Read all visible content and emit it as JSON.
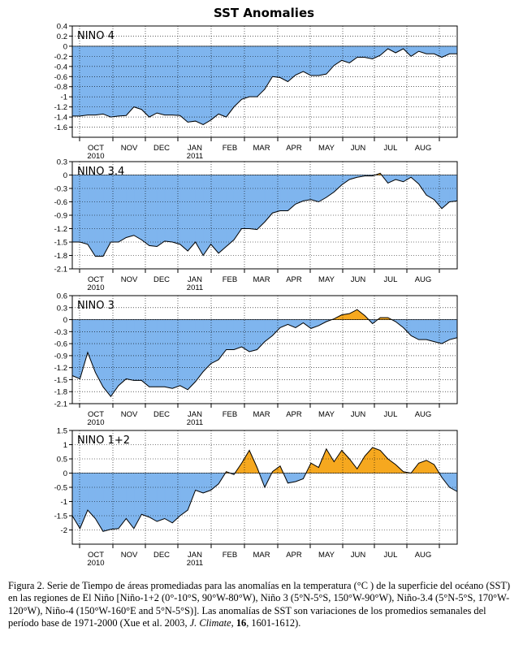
{
  "figure": {
    "title": "SST Anomalies"
  },
  "chart_data": [
    {
      "type": "area",
      "panel": "NINO 4",
      "x_ticks": [
        "OCT",
        "NOV",
        "DEC",
        "JAN",
        "FEB",
        "MAR",
        "APR",
        "MAY",
        "JUN",
        "JUL",
        "AUG"
      ],
      "x_year_labels": [
        {
          "under": "OCT",
          "text": "2010"
        },
        {
          "under": "JAN",
          "text": "2011"
        }
      ],
      "ylim": [
        -1.8,
        0.4
      ],
      "yticks": [
        -1.6,
        -1.4,
        -1.2,
        -1,
        -0.8,
        -0.6,
        -0.4,
        -0.2,
        0,
        0.2,
        0.4
      ],
      "y_tick_labels": [
        "-1.6",
        "-1.4",
        "-1.2",
        "-1",
        "-0.8",
        "-0.6",
        "-0.4",
        "-0.2",
        "0",
        "0.2",
        "0.4"
      ],
      "values": [
        -1.38,
        -1.38,
        -1.36,
        -1.36,
        -1.34,
        -1.4,
        -1.38,
        -1.37,
        -1.2,
        -1.25,
        -1.4,
        -1.32,
        -1.36,
        -1.36,
        -1.37,
        -1.5,
        -1.48,
        -1.55,
        -1.46,
        -1.34,
        -1.4,
        -1.2,
        -1.05,
        -1.0,
        -1.0,
        -0.85,
        -0.6,
        -0.62,
        -0.7,
        -0.57,
        -0.5,
        -0.58,
        -0.58,
        -0.55,
        -0.38,
        -0.28,
        -0.33,
        -0.22,
        -0.22,
        -0.25,
        -0.18,
        -0.05,
        -0.13,
        -0.05,
        -0.2,
        -0.1,
        -0.15,
        -0.15,
        -0.22,
        -0.15,
        -0.15
      ]
    },
    {
      "type": "area",
      "panel": "NINO 3.4",
      "x_ticks": [
        "OCT",
        "NOV",
        "DEC",
        "JAN",
        "FEB",
        "MAR",
        "APR",
        "MAY",
        "JUN",
        "JUL",
        "AUG"
      ],
      "x_year_labels": [
        {
          "under": "OCT",
          "text": "2010"
        },
        {
          "under": "JAN",
          "text": "2011"
        }
      ],
      "ylim": [
        -2.1,
        0.3
      ],
      "yticks": [
        -2.1,
        -1.8,
        -1.5,
        -1.2,
        -0.9,
        -0.6,
        -0.3,
        0,
        0.3
      ],
      "y_tick_labels": [
        "-2.1",
        "-1.8",
        "-1.5",
        "-1.2",
        "-0.9",
        "-0.6",
        "-0.3",
        "0",
        "0.3"
      ],
      "values": [
        -1.5,
        -1.5,
        -1.55,
        -1.82,
        -1.82,
        -1.5,
        -1.5,
        -1.4,
        -1.35,
        -1.45,
        -1.58,
        -1.6,
        -1.48,
        -1.5,
        -1.55,
        -1.7,
        -1.5,
        -1.8,
        -1.55,
        -1.75,
        -1.6,
        -1.45,
        -1.2,
        -1.2,
        -1.22,
        -1.05,
        -0.85,
        -0.8,
        -0.8,
        -0.65,
        -0.58,
        -0.55,
        -0.6,
        -0.5,
        -0.38,
        -0.22,
        -0.1,
        -0.05,
        -0.02,
        -0.02,
        0.04,
        -0.18,
        -0.1,
        -0.15,
        -0.05,
        -0.2,
        -0.45,
        -0.55,
        -0.75,
        -0.6,
        -0.58
      ]
    },
    {
      "type": "area",
      "panel": "NINO 3",
      "x_ticks": [
        "OCT",
        "NOV",
        "DEC",
        "JAN",
        "FEB",
        "MAR",
        "APR",
        "MAY",
        "JUN",
        "JUL",
        "AUG"
      ],
      "x_year_labels": [
        {
          "under": "OCT",
          "text": "2010"
        },
        {
          "under": "JAN",
          "text": "2011"
        }
      ],
      "ylim": [
        -2.1,
        0.6
      ],
      "yticks": [
        -2.1,
        -1.8,
        -1.5,
        -1.2,
        -0.9,
        -0.6,
        -0.3,
        0,
        0.3,
        0.6
      ],
      "y_tick_labels": [
        "-2.1",
        "-1.8",
        "-1.5",
        "-1.2",
        "-0.9",
        "-0.6",
        "-0.3",
        "0",
        "0.3",
        "0.6"
      ],
      "values": [
        -1.4,
        -1.48,
        -0.82,
        -1.32,
        -1.68,
        -1.92,
        -1.65,
        -1.48,
        -1.52,
        -1.52,
        -1.68,
        -1.68,
        -1.68,
        -1.72,
        -1.65,
        -1.75,
        -1.55,
        -1.3,
        -1.1,
        -1.0,
        -0.75,
        -0.75,
        -0.68,
        -0.8,
        -0.75,
        -0.55,
        -0.4,
        -0.2,
        -0.12,
        -0.2,
        -0.08,
        -0.22,
        -0.15,
        -0.05,
        0.02,
        0.12,
        0.15,
        0.25,
        0.1,
        -0.1,
        0.05,
        0.05,
        -0.05,
        -0.2,
        -0.4,
        -0.5,
        -0.5,
        -0.55,
        -0.6,
        -0.5,
        -0.45
      ]
    },
    {
      "type": "area",
      "panel": "NINO 1+2",
      "x_ticks": [
        "OCT",
        "NOV",
        "DEC",
        "JAN",
        "FEB",
        "MAR",
        "APR",
        "MAY",
        "JUN",
        "JUL",
        "AUG"
      ],
      "x_year_labels": [
        {
          "under": "OCT",
          "text": "2010"
        },
        {
          "under": "JAN",
          "text": "2011"
        }
      ],
      "ylim": [
        -2.5,
        1.5
      ],
      "yticks": [
        -2,
        -1.5,
        -1,
        -0.5,
        0,
        0.5,
        1,
        1.5
      ],
      "y_tick_labels": [
        "-2",
        "-1.5",
        "-1",
        "-0.5",
        "0",
        "0.5",
        "1",
        "1.5"
      ],
      "values": [
        -1.5,
        -1.95,
        -1.3,
        -1.6,
        -2.05,
        -1.98,
        -1.95,
        -1.6,
        -1.95,
        -1.45,
        -1.55,
        -1.7,
        -1.6,
        -1.75,
        -1.5,
        -1.3,
        -0.6,
        -0.7,
        -0.6,
        -0.38,
        0.05,
        -0.05,
        0.35,
        0.8,
        0.2,
        -0.5,
        0.05,
        0.25,
        -0.35,
        -0.3,
        -0.2,
        0.35,
        0.2,
        0.85,
        0.4,
        0.8,
        0.5,
        0.15,
        0.6,
        0.9,
        0.8,
        0.5,
        0.3,
        0.05,
        0.0,
        0.35,
        0.45,
        0.3,
        -0.15,
        -0.5,
        -0.65
      ]
    }
  ],
  "caption": {
    "lead": "Figura 2. Serie de Tiempo de áreas promediadas para las anomalías en la temperatura (°C ) de la superficie del océano (SST) en las regiones de El Niño [Niño-1+2 (0°-10°S, 90°W-80°W), Niño 3 (5°N-5°S, 150°W-90°W), Niño-3.4 (5°N-5°S, 170°W-120°W), Niño-4 (150°W-160°E and 5°N-5°S)]. Las anomalías de SST son variaciones de los promedios semanales del período base de 1971-2000 (Xue et al. 2003, ",
    "journal": "J. Climate",
    "sep1": ", ",
    "volume": "16",
    "pages": ", 1601-1612)."
  },
  "colors": {
    "negative_fill": "#7fb5ee",
    "positive_fill": "#f6a81f",
    "line": "#000000"
  }
}
